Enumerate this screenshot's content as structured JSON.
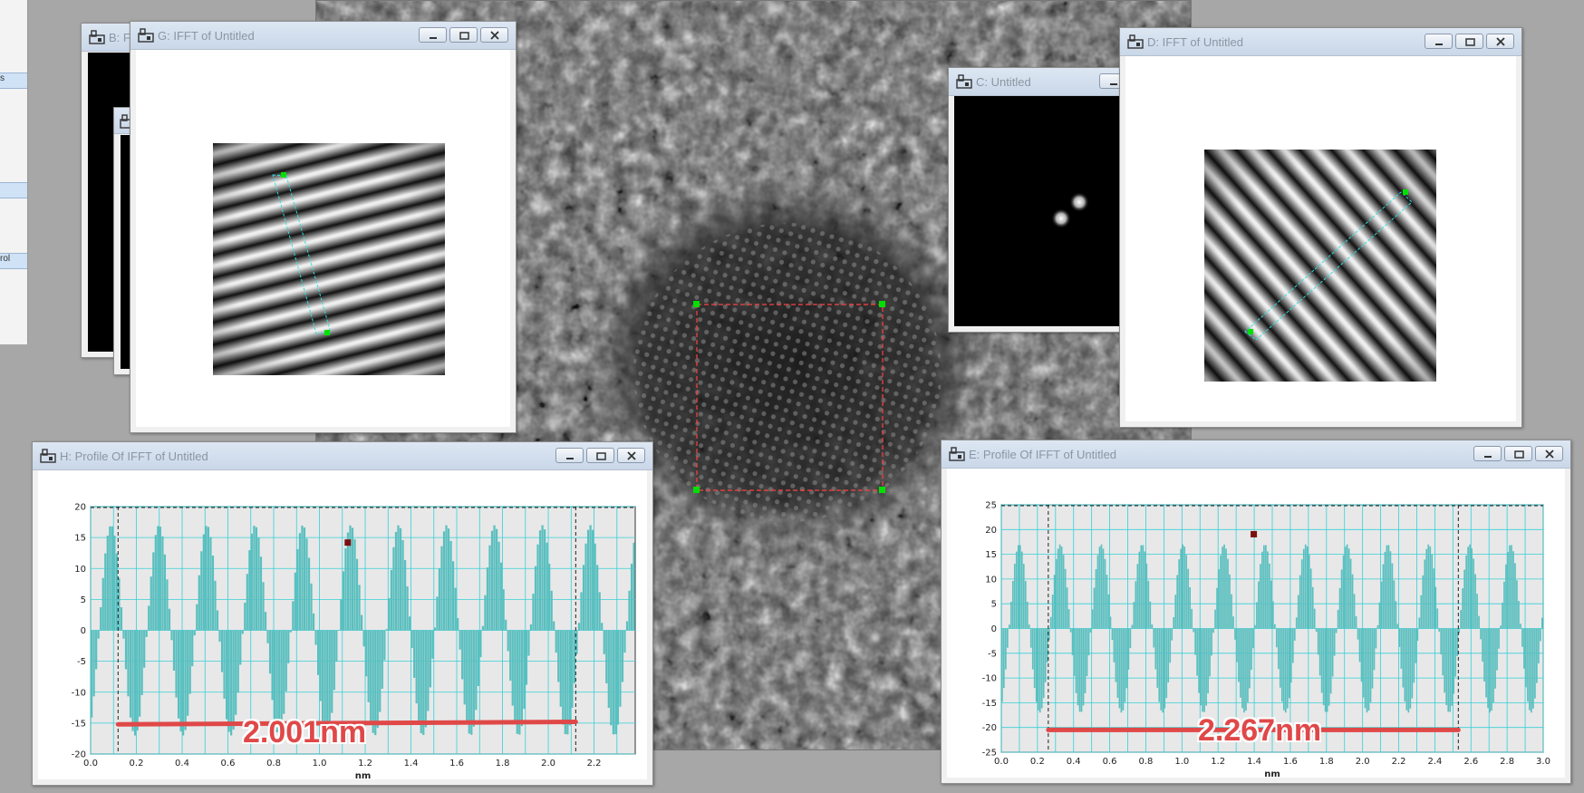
{
  "windows": {
    "b": {
      "title": "B: F"
    },
    "g": {
      "title": "G: IFFT of Untitled"
    },
    "c": {
      "title": "C: Untitled"
    },
    "d": {
      "title": "D: IFFT of Untitled"
    },
    "h": {
      "title": "H: Profile Of IFFT of Untitled"
    },
    "e": {
      "title": "E: Profile Of IFFT of Untitled"
    }
  },
  "left_panel": {
    "items": [
      "s",
      "rol"
    ]
  },
  "colors": {
    "accent": "#5bbfbf",
    "measure_line": "#e04848",
    "roi": "#ff4040",
    "handle": "#00e000"
  },
  "chart_data": [
    {
      "type": "bar",
      "panel": "H: Profile Of IFFT of Untitled",
      "xlabel": "nm",
      "xlim": [
        0,
        2.38
      ],
      "ylim": [
        -20,
        20
      ],
      "xticks": [
        "0.0",
        "0.2",
        "0.4",
        "0.6",
        "0.8",
        "1.0",
        "1.2",
        "1.4",
        "1.6",
        "1.8",
        "2.0",
        "2.2"
      ],
      "yticks": [
        "20",
        "15",
        "10",
        "5",
        "0",
        "-5",
        "-10",
        "-15",
        "-20"
      ],
      "period": 0.2095,
      "phase": 0.09,
      "amplitude": 17,
      "measurement": {
        "label": "2.001nm",
        "x_start": 0.12,
        "x_end": 2.12,
        "y_start": -15.2,
        "y_end": -14.8
      }
    },
    {
      "type": "bar",
      "panel": "E: Profile Of IFFT of Untitled",
      "xlabel": "nm",
      "xlim": [
        0,
        3.0
      ],
      "ylim": [
        -25,
        25
      ],
      "xticks": [
        "0.0",
        "0.2",
        "0.4",
        "0.6",
        "0.8",
        "1.0",
        "1.2",
        "1.4",
        "1.6",
        "1.8",
        "2.0",
        "2.2",
        "2.4",
        "2.6",
        "2.8",
        "3.0"
      ],
      "yticks": [
        "25",
        "20",
        "15",
        "10",
        "5",
        "0",
        "-5",
        "-10",
        "-15",
        "-20",
        "-25"
      ],
      "period": 0.2267,
      "phase": 0.1,
      "amplitude": 17,
      "measurement": {
        "label": "2.267nm",
        "x_start": 0.26,
        "x_end": 2.53,
        "y_start": -20.5,
        "y_end": -20.5
      }
    }
  ]
}
